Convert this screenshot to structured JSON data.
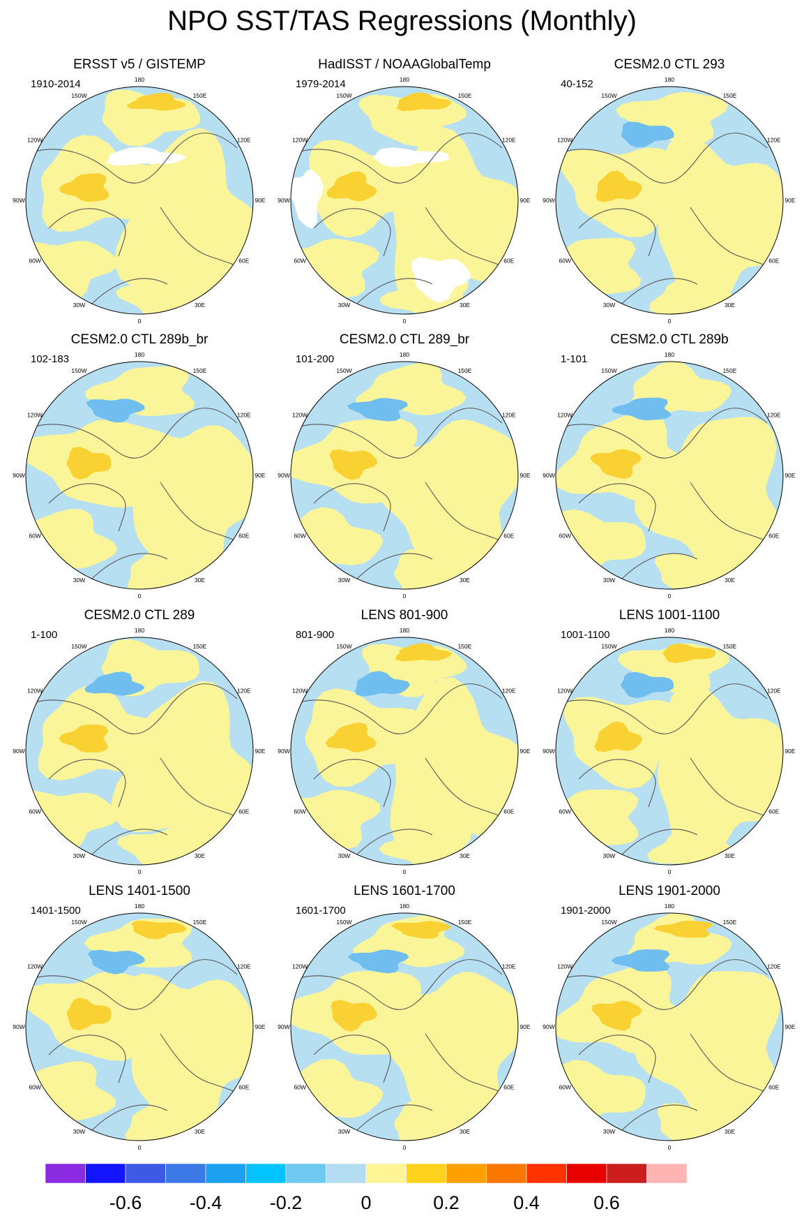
{
  "title": "NPO SST/TAS Regressions (Monthly)",
  "colors": {
    "ocean_neg": "#b7dff2",
    "ocean_pos": "#fbf59a",
    "warm_core": "#fad132",
    "cool_core": "#6fbeef",
    "coast": "#555555",
    "missing": "#ffffff"
  },
  "longitude_labels": [
    "180",
    "150E",
    "120E",
    "90E",
    "60E",
    "30E",
    "0",
    "30W",
    "60W",
    "90W",
    "120W",
    "150W"
  ],
  "panels": [
    {
      "title": "ERSST v5 / GISTEMP",
      "years": "1910-2014",
      "pattern": "obs1"
    },
    {
      "title": "HadISST / NOAAGlobalTemp",
      "years": "1979-2014",
      "pattern": "obs2"
    },
    {
      "title": "CESM2.0 CTL 293",
      "years": "40-152",
      "pattern": "model"
    },
    {
      "title": "CESM2.0 CTL 289b_br",
      "years": "102-183",
      "pattern": "model"
    },
    {
      "title": "CESM2.0 CTL 289_br",
      "years": "101-200",
      "pattern": "model"
    },
    {
      "title": "CESM2.0 CTL 289b",
      "years": "1-101",
      "pattern": "model"
    },
    {
      "title": "CESM2.0 CTL 289",
      "years": "1-100",
      "pattern": "model"
    },
    {
      "title": "LENS 801-900",
      "years": "801-900",
      "pattern": "lens"
    },
    {
      "title": "LENS 1001-1100",
      "years": "1001-1100",
      "pattern": "lens"
    },
    {
      "title": "LENS 1401-1500",
      "years": "1401-1500",
      "pattern": "lens"
    },
    {
      "title": "LENS 1601-1700",
      "years": "1601-1700",
      "pattern": "lens"
    },
    {
      "title": "LENS 1901-2000",
      "years": "1901-2000",
      "pattern": "lens"
    }
  ],
  "colorbar": {
    "colors": [
      "#8a2be2",
      "#1414ff",
      "#3c5ae6",
      "#3c78e6",
      "#1ea0f0",
      "#00c3ff",
      "#6ec8f0",
      "#b4dcf0",
      "#fff596",
      "#ffd21e",
      "#ffa000",
      "#fa7800",
      "#ff3200",
      "#e60000",
      "#cd1e1e",
      "#ffb4b4"
    ],
    "labels": [
      "-0.6",
      "-0.4",
      "-0.2",
      "0",
      "0.2",
      "0.4",
      "0.6"
    ],
    "label_box_index": [
      2,
      4,
      6,
      8,
      10,
      12,
      14
    ]
  }
}
